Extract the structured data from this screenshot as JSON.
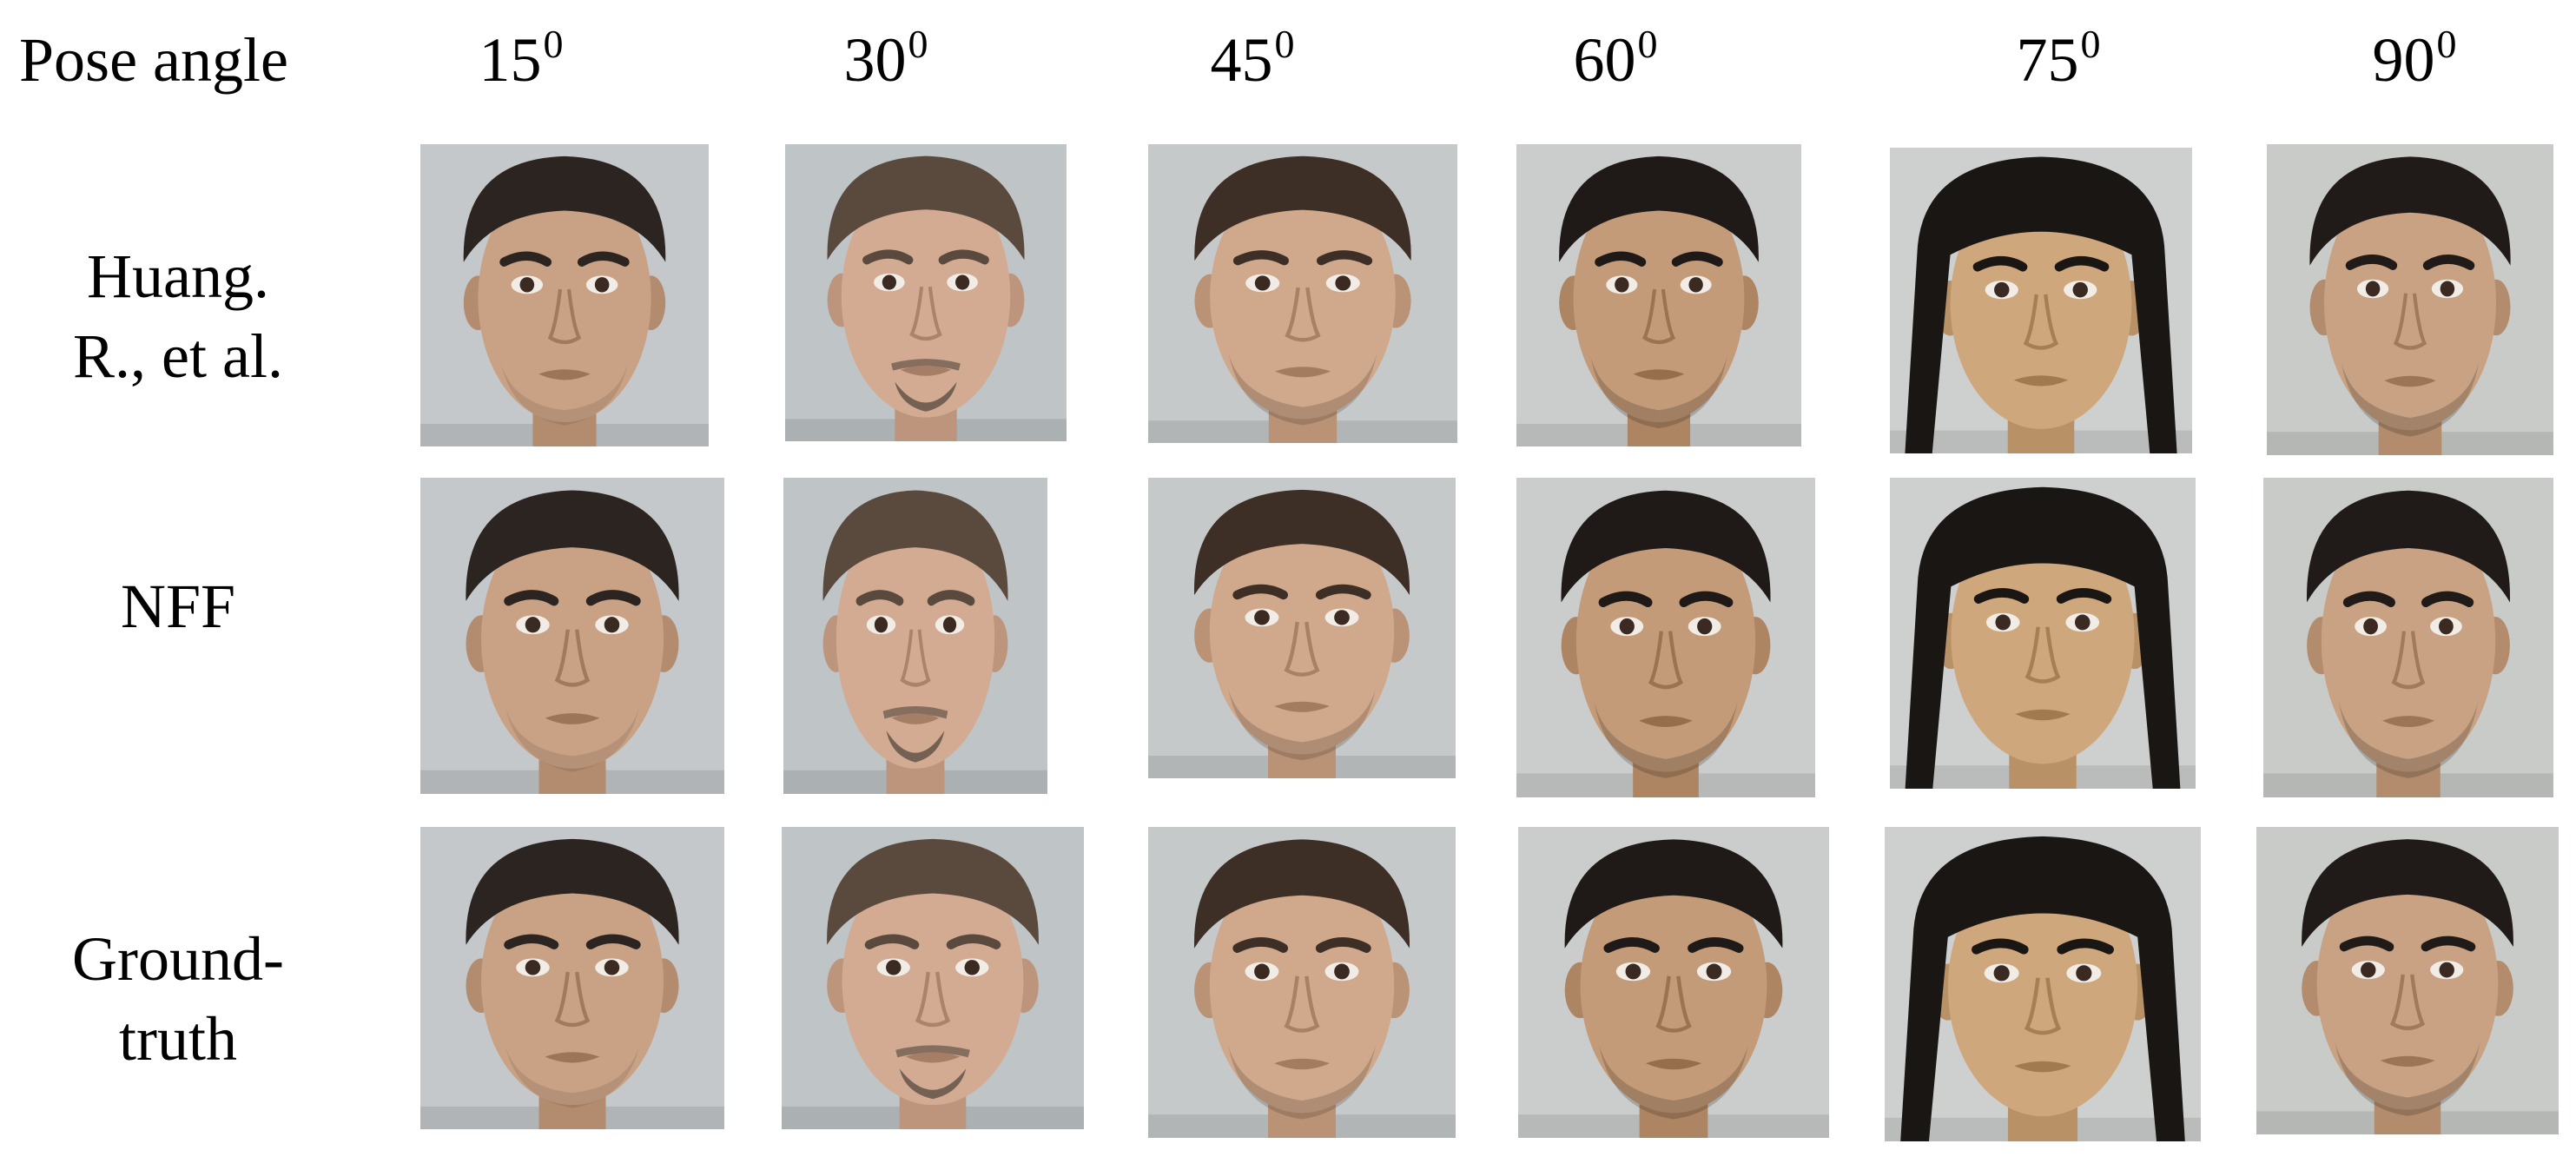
{
  "header": {
    "pose_label": "Pose angle",
    "angles": [
      {
        "value": "15",
        "unit": "0"
      },
      {
        "value": "30",
        "unit": "0"
      },
      {
        "value": "45",
        "unit": "0"
      },
      {
        "value": "60",
        "unit": "0"
      },
      {
        "value": "75",
        "unit": "0"
      },
      {
        "value": "90",
        "unit": "0"
      }
    ]
  },
  "rows": [
    {
      "label_lines": [
        "Huang.",
        "R., et al."
      ]
    },
    {
      "label_lines": [
        "NFF"
      ]
    },
    {
      "label_lines": [
        "Ground-",
        "truth"
      ]
    }
  ],
  "subjects": [
    {
      "skin": "#c9a184",
      "hair": "#2b2420",
      "bg": "#c4c8ca",
      "beard": "light",
      "long_hair": false
    },
    {
      "skin": "#d2ab92",
      "hair": "#5a4a3e",
      "bg": "#bfc4c6",
      "beard": "goatee",
      "long_hair": false
    },
    {
      "skin": "#d0a88c",
      "hair": "#3d2e26",
      "bg": "#c6c9ca",
      "beard": "stubble",
      "long_hair": false
    },
    {
      "skin": "#c49b78",
      "hair": "#1f1a17",
      "bg": "#cbcdcd",
      "beard": "stubble",
      "long_hair": false
    },
    {
      "skin": "#cfa77d",
      "hair": "#1a1614",
      "bg": "#cdd0cf",
      "beard": "none",
      "long_hair": true
    },
    {
      "skin": "#c8a282",
      "hair": "#201b18",
      "bg": "#c9cbc9",
      "beard": "stubble",
      "long_hair": false
    }
  ]
}
